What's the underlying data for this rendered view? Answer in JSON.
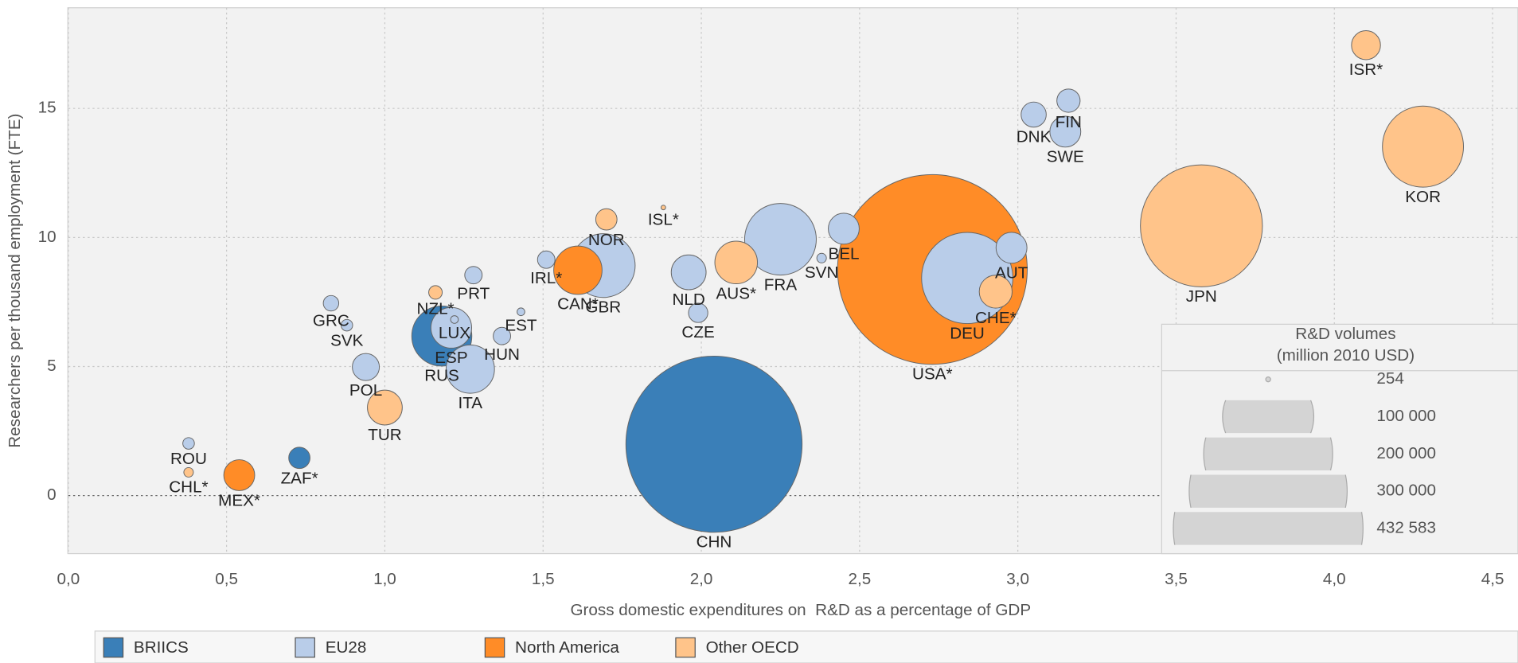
{
  "chart_data": {
    "type": "bubble",
    "x_label": "Gross domestic expenditures on  R&D as a percentage of GDP",
    "y_label": "Researchers per thousand employment (FTE)",
    "xlim": [
      0,
      4.58
    ],
    "ylim": [
      -2.25,
      18.9
    ],
    "xticks": [
      {
        "value": 0,
        "label": "0,0"
      },
      {
        "value": 0.5,
        "label": "0,5"
      },
      {
        "value": 1,
        "label": "1,0"
      },
      {
        "value": 1.5,
        "label": "1,5"
      },
      {
        "value": 2,
        "label": "2,0"
      },
      {
        "value": 2.5,
        "label": "2,5"
      },
      {
        "value": 3,
        "label": "3,0"
      },
      {
        "value": 3.5,
        "label": "3,5"
      },
      {
        "value": 4,
        "label": "4,0"
      },
      {
        "value": 4.5,
        "label": "4,5"
      }
    ],
    "yticks": [
      0,
      5,
      10,
      15
    ],
    "grid": true,
    "series": [
      {
        "name": "BRIICS",
        "color": "#3a7fb8",
        "labels": [
          "CHN",
          "RUS",
          "ZAF*"
        ],
        "x": [
          2.04,
          1.18,
          0.73
        ],
        "values": [
          1.99,
          6.18,
          1.46
        ],
        "sizes": [
          373000,
          43300,
          5450
        ]
      },
      {
        "name": "EU28",
        "color": "#b9cde9",
        "labels": [
          "FIN",
          "DNK",
          "SWE",
          "AUT",
          "DEU",
          "BEL",
          "SVN",
          "FRA",
          "NLD",
          "CZE",
          "GBR",
          "IRL*",
          "EST",
          "HUN",
          "PRT",
          "ITA",
          "LUX",
          "ESP",
          "GRC",
          "SVK",
          "POL",
          "ROU"
        ],
        "x": [
          3.16,
          3.05,
          3.15,
          2.98,
          2.84,
          2.45,
          2.38,
          2.25,
          1.96,
          1.99,
          1.69,
          1.51,
          1.43,
          1.37,
          1.28,
          1.27,
          1.22,
          1.21,
          0.83,
          0.88,
          0.94,
          0.38
        ],
        "values": [
          15.3,
          14.76,
          14.1,
          9.6,
          8.43,
          10.34,
          9.2,
          9.93,
          8.65,
          7.08,
          8.91,
          9.14,
          7.12,
          6.18,
          8.54,
          4.9,
          6.82,
          6.5,
          7.45,
          6.6,
          4.98,
          2.02
        ],
        "sizes": [
          6500,
          7600,
          11500,
          11500,
          100000,
          11500,
          1100,
          61700,
          14600,
          4500,
          49000,
          3650,
          720,
          3650,
          3650,
          28100,
          720,
          19900,
          2880,
          1620,
          8800,
          1620
        ]
      },
      {
        "name": "North America",
        "color": "#ff8c27",
        "labels": [
          "USA*",
          "CAN*",
          "MEX*"
        ],
        "x": [
          2.73,
          1.61,
          0.54
        ],
        "values": [
          8.76,
          8.73,
          0.79
        ],
        "sizes": [
          432583,
          28100,
          11500
        ]
      },
      {
        "name": "Other OECD",
        "color": "#ffc48a",
        "labels": [
          "ISR*",
          "KOR",
          "JPN",
          "CHE*",
          "AUS*",
          "ISL*",
          "NOR",
          "NZL*",
          "TUR",
          "CHL*"
        ],
        "x": [
          4.1,
          4.28,
          3.58,
          2.93,
          2.11,
          1.88,
          1.7,
          1.16,
          1.0,
          0.38
        ],
        "values": [
          17.45,
          13.52,
          10.45,
          7.9,
          9.03,
          11.16,
          10.7,
          7.87,
          3.41,
          0.9
        ],
        "sizes": [
          10100,
          79000,
          179000,
          13000,
          21800,
          254,
          5450,
          2200,
          14600,
          1100
        ]
      }
    ],
    "size_legend": {
      "title": [
        "R&D volumes",
        "(million 2010 USD)"
      ],
      "values": [
        {
          "value": 254,
          "label": "254"
        },
        {
          "value": 100000,
          "label": "100 000"
        },
        {
          "value": 200000,
          "label": "200 000"
        },
        {
          "value": 300000,
          "label": "300 000"
        },
        {
          "value": 432583,
          "label": "432 583"
        }
      ]
    }
  }
}
